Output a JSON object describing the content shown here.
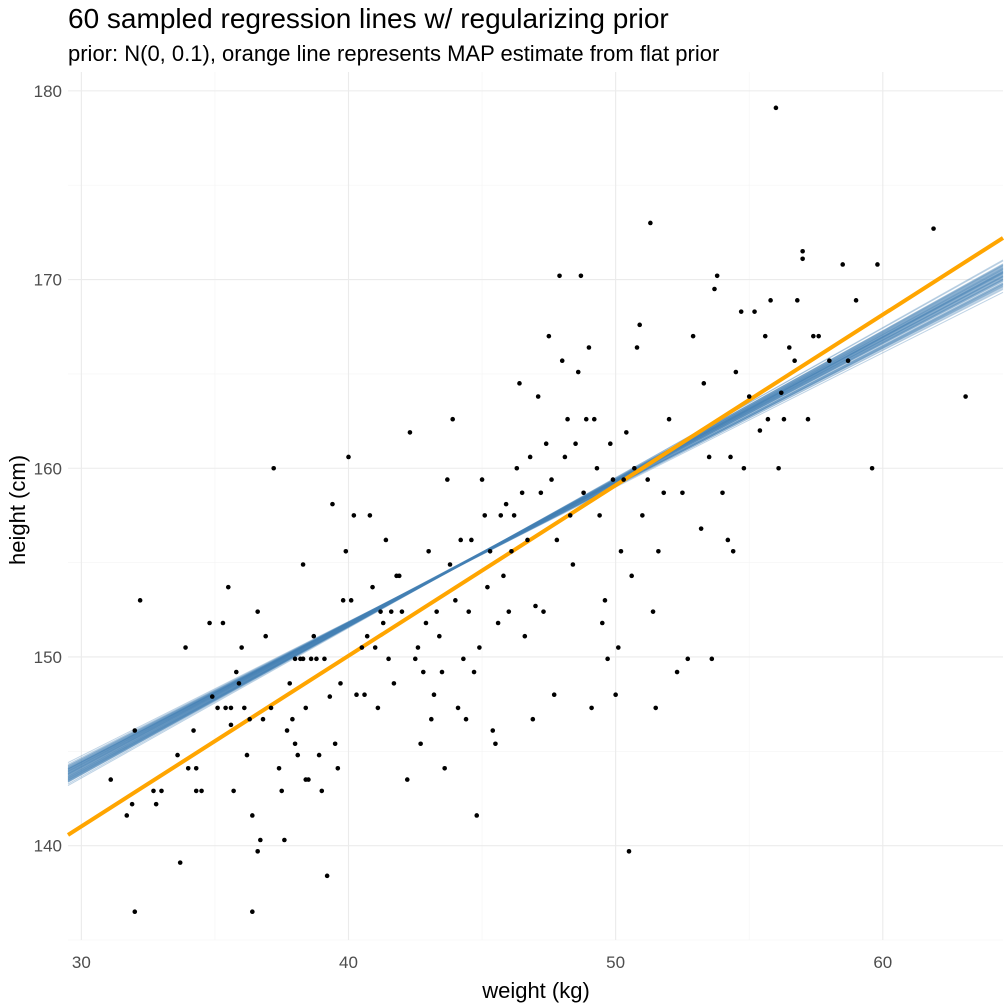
{
  "chart_data": {
    "type": "scatter",
    "title": "60 sampled regression lines w/ regularizing prior",
    "subtitle": "prior: N(0, 0.1), orange line represents MAP estimate from flat prior",
    "xlabel": "weight (kg)",
    "ylabel": "height (cm)",
    "xlim": [
      29.5,
      64.5
    ],
    "ylim": [
      135,
      181
    ],
    "x_ticks": [
      30,
      40,
      50,
      60
    ],
    "y_ticks": [
      140,
      150,
      160,
      170,
      180
    ],
    "grid": true,
    "legend": "none",
    "colors": {
      "points": "#000000",
      "sampled_lines": "#4682b4",
      "map_line": "#ffa500"
    },
    "points": [
      [
        31.1,
        143.5
      ],
      [
        31.7,
        141.6
      ],
      [
        31.9,
        142.2
      ],
      [
        32.0,
        146.1
      ],
      [
        32.0,
        136.5
      ],
      [
        32.2,
        153.0
      ],
      [
        32.7,
        142.9
      ],
      [
        32.8,
        142.2
      ],
      [
        33.0,
        142.9
      ],
      [
        33.6,
        144.8
      ],
      [
        33.7,
        139.1
      ],
      [
        33.9,
        150.5
      ],
      [
        34.0,
        144.1
      ],
      [
        34.2,
        146.1
      ],
      [
        34.3,
        144.1
      ],
      [
        34.3,
        142.9
      ],
      [
        34.5,
        142.9
      ],
      [
        34.8,
        151.8
      ],
      [
        34.9,
        147.9
      ],
      [
        35.1,
        147.3
      ],
      [
        35.3,
        151.8
      ],
      [
        35.4,
        147.3
      ],
      [
        35.5,
        153.7
      ],
      [
        35.6,
        147.3
      ],
      [
        35.6,
        146.4
      ],
      [
        35.7,
        142.9
      ],
      [
        35.8,
        149.2
      ],
      [
        35.9,
        148.6
      ],
      [
        36.0,
        150.5
      ],
      [
        36.1,
        147.3
      ],
      [
        36.2,
        144.8
      ],
      [
        36.3,
        146.7
      ],
      [
        36.4,
        141.6
      ],
      [
        36.4,
        136.5
      ],
      [
        36.6,
        139.7
      ],
      [
        36.6,
        152.4
      ],
      [
        36.7,
        140.3
      ],
      [
        36.8,
        146.7
      ],
      [
        36.9,
        151.1
      ],
      [
        37.1,
        147.3
      ],
      [
        37.2,
        160.0
      ],
      [
        37.4,
        144.1
      ],
      [
        37.5,
        142.9
      ],
      [
        37.6,
        140.3
      ],
      [
        37.7,
        146.1
      ],
      [
        37.8,
        148.6
      ],
      [
        37.9,
        146.7
      ],
      [
        38.0,
        149.9
      ],
      [
        38.0,
        145.4
      ],
      [
        38.1,
        144.8
      ],
      [
        38.2,
        149.9
      ],
      [
        38.3,
        149.9
      ],
      [
        38.3,
        154.9
      ],
      [
        38.4,
        147.3
      ],
      [
        38.4,
        143.5
      ],
      [
        38.5,
        143.5
      ],
      [
        38.6,
        149.9
      ],
      [
        38.7,
        151.1
      ],
      [
        38.8,
        149.9
      ],
      [
        38.9,
        144.8
      ],
      [
        39.0,
        142.9
      ],
      [
        39.1,
        149.9
      ],
      [
        39.2,
        138.4
      ],
      [
        39.3,
        147.9
      ],
      [
        39.4,
        158.1
      ],
      [
        39.5,
        145.4
      ],
      [
        39.6,
        144.1
      ],
      [
        39.7,
        148.6
      ],
      [
        39.8,
        153.0
      ],
      [
        39.9,
        155.6
      ],
      [
        40.0,
        160.6
      ],
      [
        40.1,
        153.0
      ],
      [
        40.2,
        157.5
      ],
      [
        40.3,
        148.0
      ],
      [
        40.5,
        150.5
      ],
      [
        40.6,
        148.0
      ],
      [
        40.7,
        151.1
      ],
      [
        40.8,
        157.5
      ],
      [
        40.9,
        153.7
      ],
      [
        41.0,
        150.5
      ],
      [
        41.1,
        147.3
      ],
      [
        41.2,
        152.4
      ],
      [
        41.3,
        151.8
      ],
      [
        41.4,
        156.2
      ],
      [
        41.5,
        149.9
      ],
      [
        41.6,
        152.4
      ],
      [
        41.7,
        148.6
      ],
      [
        41.8,
        154.3
      ],
      [
        41.9,
        154.3
      ],
      [
        42.0,
        152.4
      ],
      [
        42.2,
        143.5
      ],
      [
        42.3,
        161.9
      ],
      [
        42.5,
        149.9
      ],
      [
        42.6,
        150.5
      ],
      [
        42.7,
        145.4
      ],
      [
        42.8,
        149.2
      ],
      [
        42.9,
        151.8
      ],
      [
        43.0,
        155.6
      ],
      [
        43.1,
        146.7
      ],
      [
        43.2,
        148.0
      ],
      [
        43.3,
        152.4
      ],
      [
        43.4,
        151.1
      ],
      [
        43.5,
        149.2
      ],
      [
        43.6,
        144.1
      ],
      [
        43.7,
        159.4
      ],
      [
        43.8,
        154.9
      ],
      [
        43.9,
        162.6
      ],
      [
        44.0,
        153.0
      ],
      [
        44.1,
        147.3
      ],
      [
        44.2,
        156.2
      ],
      [
        44.3,
        149.9
      ],
      [
        44.4,
        146.7
      ],
      [
        44.5,
        152.4
      ],
      [
        44.6,
        156.2
      ],
      [
        44.7,
        149.2
      ],
      [
        44.8,
        141.6
      ],
      [
        44.9,
        150.5
      ],
      [
        45.0,
        159.4
      ],
      [
        45.1,
        157.5
      ],
      [
        45.2,
        153.7
      ],
      [
        45.3,
        155.6
      ],
      [
        45.4,
        146.1
      ],
      [
        45.5,
        145.4
      ],
      [
        45.6,
        151.8
      ],
      [
        45.7,
        157.5
      ],
      [
        45.8,
        154.3
      ],
      [
        45.9,
        158.1
      ],
      [
        46.0,
        152.4
      ],
      [
        46.1,
        155.6
      ],
      [
        46.2,
        157.5
      ],
      [
        46.3,
        160.0
      ],
      [
        46.4,
        164.5
      ],
      [
        46.5,
        158.7
      ],
      [
        46.6,
        151.1
      ],
      [
        46.7,
        156.2
      ],
      [
        46.8,
        160.6
      ],
      [
        46.9,
        146.7
      ],
      [
        47.0,
        152.7
      ],
      [
        47.1,
        163.8
      ],
      [
        47.2,
        158.7
      ],
      [
        47.3,
        152.4
      ],
      [
        47.4,
        161.3
      ],
      [
        47.5,
        167.0
      ],
      [
        47.6,
        159.4
      ],
      [
        47.7,
        148.0
      ],
      [
        47.8,
        156.2
      ],
      [
        47.9,
        170.2
      ],
      [
        48.0,
        165.7
      ],
      [
        48.1,
        160.6
      ],
      [
        48.2,
        162.6
      ],
      [
        48.3,
        157.5
      ],
      [
        48.4,
        154.9
      ],
      [
        48.5,
        161.3
      ],
      [
        48.6,
        165.1
      ],
      [
        48.7,
        170.2
      ],
      [
        48.8,
        158.7
      ],
      [
        48.9,
        162.6
      ],
      [
        49.0,
        166.4
      ],
      [
        49.1,
        147.3
      ],
      [
        49.2,
        162.6
      ],
      [
        49.3,
        160.0
      ],
      [
        49.4,
        157.5
      ],
      [
        49.5,
        151.8
      ],
      [
        49.6,
        153.0
      ],
      [
        49.7,
        149.9
      ],
      [
        49.8,
        161.3
      ],
      [
        49.9,
        159.4
      ],
      [
        50.0,
        148.0
      ],
      [
        50.1,
        150.5
      ],
      [
        50.2,
        155.6
      ],
      [
        50.3,
        159.4
      ],
      [
        50.4,
        161.9
      ],
      [
        50.5,
        139.7
      ],
      [
        50.6,
        154.3
      ],
      [
        50.7,
        160.0
      ],
      [
        50.8,
        166.4
      ],
      [
        50.9,
        167.6
      ],
      [
        51.0,
        157.5
      ],
      [
        51.2,
        159.4
      ],
      [
        51.3,
        173.0
      ],
      [
        51.4,
        152.4
      ],
      [
        51.5,
        147.3
      ],
      [
        51.6,
        155.6
      ],
      [
        51.8,
        158.7
      ],
      [
        52.0,
        162.6
      ],
      [
        52.3,
        149.2
      ],
      [
        52.5,
        158.7
      ],
      [
        52.7,
        149.9
      ],
      [
        52.9,
        167.0
      ],
      [
        53.2,
        156.8
      ],
      [
        53.3,
        164.5
      ],
      [
        53.5,
        160.6
      ],
      [
        53.6,
        149.9
      ],
      [
        53.7,
        169.5
      ],
      [
        53.8,
        170.2
      ],
      [
        54.0,
        158.7
      ],
      [
        54.2,
        156.2
      ],
      [
        54.3,
        160.6
      ],
      [
        54.4,
        155.6
      ],
      [
        54.5,
        165.1
      ],
      [
        54.7,
        168.3
      ],
      [
        54.8,
        160.0
      ],
      [
        55.0,
        163.8
      ],
      [
        55.2,
        168.3
      ],
      [
        55.4,
        162.0
      ],
      [
        55.6,
        167.0
      ],
      [
        55.7,
        162.6
      ],
      [
        55.8,
        168.9
      ],
      [
        56.0,
        179.1
      ],
      [
        56.1,
        160.0
      ],
      [
        56.2,
        164.0
      ],
      [
        56.3,
        162.6
      ],
      [
        56.5,
        166.4
      ],
      [
        56.7,
        165.7
      ],
      [
        56.8,
        168.9
      ],
      [
        57.0,
        171.5
      ],
      [
        57.0,
        171.1
      ],
      [
        57.2,
        162.6
      ],
      [
        57.4,
        167.0
      ],
      [
        57.6,
        167.0
      ],
      [
        58.0,
        165.7
      ],
      [
        58.5,
        170.8
      ],
      [
        58.7,
        165.7
      ],
      [
        59.0,
        168.9
      ],
      [
        59.6,
        160.0
      ],
      [
        59.8,
        170.8
      ],
      [
        61.9,
        172.7
      ],
      [
        63.1,
        163.8
      ]
    ],
    "map_line": {
      "intercept": 113.9,
      "slope": 0.904
    },
    "sampled_lines": [
      [
        122.1,
        0.742
      ],
      [
        122.5,
        0.733
      ],
      [
        121.8,
        0.749
      ],
      [
        121.0,
        0.767
      ],
      [
        120.6,
        0.775
      ],
      [
        120.3,
        0.782
      ],
      [
        119.7,
        0.796
      ],
      [
        122.9,
        0.724
      ],
      [
        121.5,
        0.755
      ],
      [
        121.2,
        0.762
      ],
      [
        120.9,
        0.769
      ],
      [
        122.4,
        0.735
      ],
      [
        121.9,
        0.746
      ],
      [
        120.4,
        0.781
      ],
      [
        121.6,
        0.753
      ],
      [
        122.0,
        0.744
      ],
      [
        121.3,
        0.76
      ],
      [
        120.8,
        0.771
      ],
      [
        122.6,
        0.73
      ],
      [
        121.7,
        0.751
      ],
      [
        121.1,
        0.765
      ],
      [
        122.3,
        0.737
      ],
      [
        120.5,
        0.778
      ],
      [
        121.4,
        0.758
      ],
      [
        122.2,
        0.74
      ],
      [
        120.7,
        0.773
      ],
      [
        121.9,
        0.747
      ],
      [
        122.8,
        0.726
      ],
      [
        121.0,
        0.766
      ],
      [
        120.2,
        0.785
      ],
      [
        123.1,
        0.719
      ],
      [
        121.5,
        0.756
      ],
      [
        122.0,
        0.745
      ],
      [
        120.9,
        0.768
      ],
      [
        121.3,
        0.761
      ],
      [
        122.4,
        0.734
      ],
      [
        120.6,
        0.776
      ],
      [
        121.8,
        0.75
      ],
      [
        122.7,
        0.728
      ],
      [
        121.2,
        0.763
      ],
      [
        119.9,
        0.792
      ],
      [
        122.1,
        0.743
      ],
      [
        121.6,
        0.754
      ],
      [
        120.4,
        0.78
      ],
      [
        121.0,
        0.768
      ],
      [
        123.4,
        0.712
      ],
      [
        122.3,
        0.738
      ],
      [
        120.8,
        0.772
      ],
      [
        121.7,
        0.752
      ],
      [
        122.5,
        0.732
      ],
      [
        121.4,
        0.759
      ],
      [
        120.3,
        0.783
      ],
      [
        122.9,
        0.723
      ],
      [
        121.1,
        0.764
      ],
      [
        120.7,
        0.774
      ],
      [
        121.9,
        0.748
      ],
      [
        122.2,
        0.741
      ],
      [
        121.5,
        0.757
      ],
      [
        120.5,
        0.779
      ],
      [
        122.6,
        0.731
      ]
    ]
  }
}
